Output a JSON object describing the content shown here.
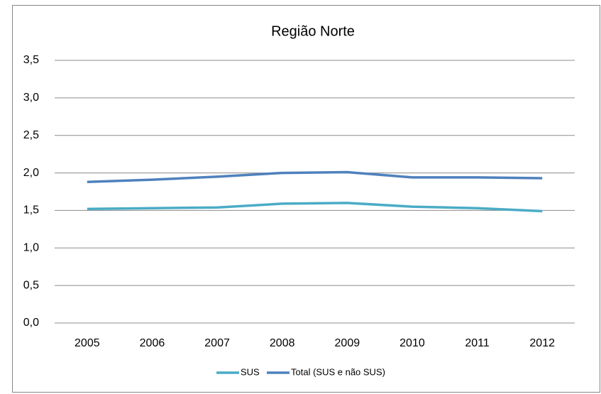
{
  "chart_data": {
    "type": "line",
    "title": "Região Norte",
    "categories": [
      "2005",
      "2006",
      "2007",
      "2008",
      "2009",
      "2010",
      "2011",
      "2012"
    ],
    "series": [
      {
        "name": "SUS",
        "color": "#4bacc6",
        "values": [
          1.52,
          1.53,
          1.54,
          1.59,
          1.6,
          1.55,
          1.53,
          1.49
        ]
      },
      {
        "name": "Total (SUS e não SUS)",
        "color": "#4f81bd",
        "values": [
          1.88,
          1.91,
          1.95,
          2.0,
          2.01,
          1.94,
          1.94,
          1.93
        ]
      }
    ],
    "ylim": [
      0,
      3.5
    ],
    "yticks": [
      {
        "value": 0,
        "label": "0,0"
      },
      {
        "value": 0.5,
        "label": "0,5"
      },
      {
        "value": 1,
        "label": "1,0"
      },
      {
        "value": 1.5,
        "label": "1,5"
      },
      {
        "value": 2,
        "label": "2,0"
      },
      {
        "value": 2.5,
        "label": "2,5"
      },
      {
        "value": 3,
        "label": "3,0"
      },
      {
        "value": 3.5,
        "label": "3,5"
      }
    ],
    "grid": true,
    "legend": "bottom"
  }
}
